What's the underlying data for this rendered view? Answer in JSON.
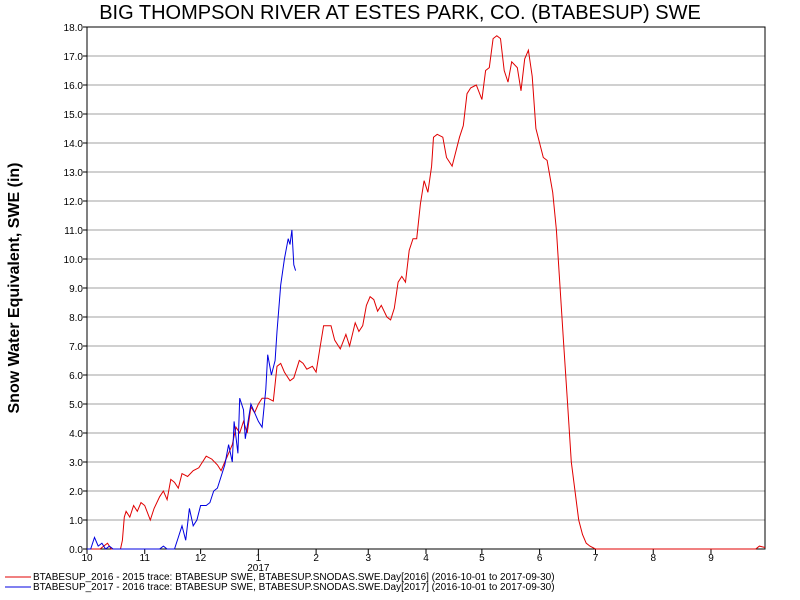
{
  "chart_data": {
    "type": "line",
    "title": "BIG THOMPSON RIVER AT ESTES PARK, CO. (BTABESUP) SWE",
    "xlabel": "",
    "ylabel": "Snow Water Equivalent, SWE (in)",
    "ylim": [
      0,
      18
    ],
    "y_ticks": [
      "0.0",
      "1.0",
      "2.0",
      "3.0",
      "4.0",
      "5.0",
      "6.0",
      "7.0",
      "8.0",
      "9.0",
      "10.0",
      "11.0",
      "12.0",
      "13.0",
      "14.0",
      "15.0",
      "16.0",
      "17.0",
      "18.0"
    ],
    "x_range": [
      "2016-10-01",
      "2017-09-30"
    ],
    "x_tick_labels": [
      "10",
      "11",
      "12",
      "1",
      "2",
      "3",
      "4",
      "5",
      "6",
      "7",
      "8",
      "9"
    ],
    "x_year_label": "2017",
    "grid": true,
    "legend_position": "bottom",
    "colors": {
      "series_2016": "#e00000",
      "series_2017": "#0000e0",
      "grid": "#a0a0a0"
    },
    "series": [
      {
        "name": "BTABESUP_2016 - 2015 trace: BTABESUP SWE, BTABESUP.SNODAS.SWE.Day[2016] (2016-10-01 to 2017-09-30)",
        "color": "#e00000",
        "points": [
          [
            "2016-10-01",
            0.0
          ],
          [
            "2016-10-08",
            0.0
          ],
          [
            "2016-10-12",
            0.2
          ],
          [
            "2016-10-14",
            0.0
          ],
          [
            "2016-10-19",
            0.0
          ],
          [
            "2016-10-20",
            0.3
          ],
          [
            "2016-10-21",
            1.1
          ],
          [
            "2016-10-22",
            1.3
          ],
          [
            "2016-10-24",
            1.1
          ],
          [
            "2016-10-26",
            1.5
          ],
          [
            "2016-10-28",
            1.3
          ],
          [
            "2016-10-30",
            1.6
          ],
          [
            "2016-11-01",
            1.5
          ],
          [
            "2016-11-04",
            1.0
          ],
          [
            "2016-11-06",
            1.4
          ],
          [
            "2016-11-09",
            1.8
          ],
          [
            "2016-11-11",
            2.0
          ],
          [
            "2016-11-13",
            1.7
          ],
          [
            "2016-11-15",
            2.4
          ],
          [
            "2016-11-17",
            2.3
          ],
          [
            "2016-11-19",
            2.1
          ],
          [
            "2016-11-21",
            2.6
          ],
          [
            "2016-11-24",
            2.5
          ],
          [
            "2016-11-27",
            2.7
          ],
          [
            "2016-11-30",
            2.8
          ],
          [
            "2016-12-02",
            3.0
          ],
          [
            "2016-12-04",
            3.2
          ],
          [
            "2016-12-07",
            3.1
          ],
          [
            "2016-12-10",
            2.9
          ],
          [
            "2016-12-12",
            2.7
          ],
          [
            "2016-12-14",
            3.0
          ],
          [
            "2016-12-16",
            3.3
          ],
          [
            "2016-12-18",
            3.6
          ],
          [
            "2016-12-20",
            4.2
          ],
          [
            "2016-12-22",
            4.0
          ],
          [
            "2016-12-24",
            4.4
          ],
          [
            "2016-12-26",
            4.0
          ],
          [
            "2016-12-28",
            4.9
          ],
          [
            "2016-12-30",
            4.7
          ],
          [
            "2017-01-01",
            5.0
          ],
          [
            "2017-01-03",
            5.2
          ],
          [
            "2017-01-06",
            5.2
          ],
          [
            "2017-01-09",
            5.1
          ],
          [
            "2017-01-11",
            6.3
          ],
          [
            "2017-01-13",
            6.4
          ],
          [
            "2017-01-15",
            6.1
          ],
          [
            "2017-01-18",
            5.8
          ],
          [
            "2017-01-20",
            5.9
          ],
          [
            "2017-01-23",
            6.5
          ],
          [
            "2017-01-25",
            6.4
          ],
          [
            "2017-01-27",
            6.2
          ],
          [
            "2017-01-30",
            6.3
          ],
          [
            "2017-02-01",
            6.1
          ],
          [
            "2017-02-03",
            6.9
          ],
          [
            "2017-02-05",
            7.7
          ],
          [
            "2017-02-09",
            7.7
          ],
          [
            "2017-02-11",
            7.2
          ],
          [
            "2017-02-14",
            6.9
          ],
          [
            "2017-02-17",
            7.4
          ],
          [
            "2017-02-19",
            7.0
          ],
          [
            "2017-02-22",
            7.8
          ],
          [
            "2017-02-24",
            7.5
          ],
          [
            "2017-02-26",
            7.7
          ],
          [
            "2017-02-28",
            8.4
          ],
          [
            "2017-03-02",
            8.7
          ],
          [
            "2017-03-04",
            8.6
          ],
          [
            "2017-03-06",
            8.2
          ],
          [
            "2017-03-08",
            8.4
          ],
          [
            "2017-03-11",
            8.0
          ],
          [
            "2017-03-13",
            7.9
          ],
          [
            "2017-03-15",
            8.3
          ],
          [
            "2017-03-17",
            9.2
          ],
          [
            "2017-03-19",
            9.4
          ],
          [
            "2017-03-21",
            9.2
          ],
          [
            "2017-03-23",
            10.3
          ],
          [
            "2017-03-25",
            10.7
          ],
          [
            "2017-03-27",
            10.7
          ],
          [
            "2017-03-29",
            11.9
          ],
          [
            "2017-03-31",
            12.7
          ],
          [
            "2017-04-02",
            12.3
          ],
          [
            "2017-04-04",
            13.2
          ],
          [
            "2017-04-05",
            14.2
          ],
          [
            "2017-04-07",
            14.3
          ],
          [
            "2017-04-10",
            14.2
          ],
          [
            "2017-04-12",
            13.5
          ],
          [
            "2017-04-15",
            13.2
          ],
          [
            "2017-04-17",
            13.7
          ],
          [
            "2017-04-19",
            14.2
          ],
          [
            "2017-04-21",
            14.6
          ],
          [
            "2017-04-23",
            15.7
          ],
          [
            "2017-04-25",
            15.9
          ],
          [
            "2017-04-28",
            16.0
          ],
          [
            "2017-05-01",
            15.5
          ],
          [
            "2017-05-03",
            16.5
          ],
          [
            "2017-05-05",
            16.6
          ],
          [
            "2017-05-07",
            17.6
          ],
          [
            "2017-05-09",
            17.7
          ],
          [
            "2017-05-11",
            17.6
          ],
          [
            "2017-05-13",
            16.5
          ],
          [
            "2017-05-15",
            16.1
          ],
          [
            "2017-05-17",
            16.8
          ],
          [
            "2017-05-20",
            16.6
          ],
          [
            "2017-05-22",
            15.8
          ],
          [
            "2017-05-24",
            16.9
          ],
          [
            "2017-05-26",
            17.2
          ],
          [
            "2017-05-28",
            16.3
          ],
          [
            "2017-05-30",
            14.5
          ],
          [
            "2017-06-01",
            14.0
          ],
          [
            "2017-06-03",
            13.5
          ],
          [
            "2017-06-05",
            13.4
          ],
          [
            "2017-06-08",
            12.3
          ],
          [
            "2017-06-10",
            11.0
          ],
          [
            "2017-06-12",
            9.0
          ],
          [
            "2017-06-14",
            7.0
          ],
          [
            "2017-06-16",
            5.0
          ],
          [
            "2017-06-18",
            3.0
          ],
          [
            "2017-06-20",
            2.0
          ],
          [
            "2017-06-22",
            1.0
          ],
          [
            "2017-06-24",
            0.5
          ],
          [
            "2017-06-26",
            0.2
          ],
          [
            "2017-06-28",
            0.1
          ],
          [
            "2017-07-01",
            0.0
          ],
          [
            "2017-09-25",
            0.0
          ],
          [
            "2017-09-27",
            0.1
          ],
          [
            "2017-09-30",
            0.05
          ]
        ]
      },
      {
        "name": "BTABESUP_2017 - 2016 trace: BTABESUP SWE, BTABESUP.SNODAS.SWE.Day[2017] (2016-10-01 to 2017-09-30)",
        "color": "#0000e0",
        "points": [
          [
            "2016-10-01",
            0.0
          ],
          [
            "2016-10-03",
            0.0
          ],
          [
            "2016-10-05",
            0.4
          ],
          [
            "2016-10-07",
            0.1
          ],
          [
            "2016-10-09",
            0.2
          ],
          [
            "2016-10-11",
            0.0
          ],
          [
            "2016-10-13",
            0.1
          ],
          [
            "2016-10-15",
            0.0
          ],
          [
            "2016-11-09",
            0.0
          ],
          [
            "2016-11-11",
            0.1
          ],
          [
            "2016-11-13",
            0.0
          ],
          [
            "2016-11-17",
            0.0
          ],
          [
            "2016-11-19",
            0.4
          ],
          [
            "2016-11-21",
            0.8
          ],
          [
            "2016-11-23",
            0.3
          ],
          [
            "2016-11-25",
            1.4
          ],
          [
            "2016-11-27",
            0.8
          ],
          [
            "2016-11-29",
            1.0
          ],
          [
            "2016-12-01",
            1.5
          ],
          [
            "2016-12-04",
            1.5
          ],
          [
            "2016-12-06",
            1.6
          ],
          [
            "2016-12-08",
            2.0
          ],
          [
            "2016-12-10",
            2.1
          ],
          [
            "2016-12-12",
            2.5
          ],
          [
            "2016-12-14",
            2.9
          ],
          [
            "2016-12-16",
            3.6
          ],
          [
            "2016-12-18",
            3.0
          ],
          [
            "2016-12-19",
            4.4
          ],
          [
            "2016-12-21",
            3.3
          ],
          [
            "2016-12-22",
            5.2
          ],
          [
            "2016-12-24",
            4.8
          ],
          [
            "2016-12-25",
            3.8
          ],
          [
            "2016-12-27",
            4.6
          ],
          [
            "2016-12-28",
            5.0
          ],
          [
            "2016-12-30",
            4.7
          ],
          [
            "2017-01-01",
            4.4
          ],
          [
            "2017-01-03",
            4.2
          ],
          [
            "2017-01-05",
            5.5
          ],
          [
            "2017-01-06",
            6.7
          ],
          [
            "2017-01-08",
            6.0
          ],
          [
            "2017-01-10",
            6.5
          ],
          [
            "2017-01-11",
            7.5
          ],
          [
            "2017-01-13",
            9.1
          ],
          [
            "2017-01-15",
            10.0
          ],
          [
            "2017-01-17",
            10.7
          ],
          [
            "2017-01-18",
            10.5
          ],
          [
            "2017-01-19",
            11.0
          ],
          [
            "2017-01-20",
            9.8
          ],
          [
            "2017-01-21",
            9.6
          ]
        ]
      }
    ]
  }
}
